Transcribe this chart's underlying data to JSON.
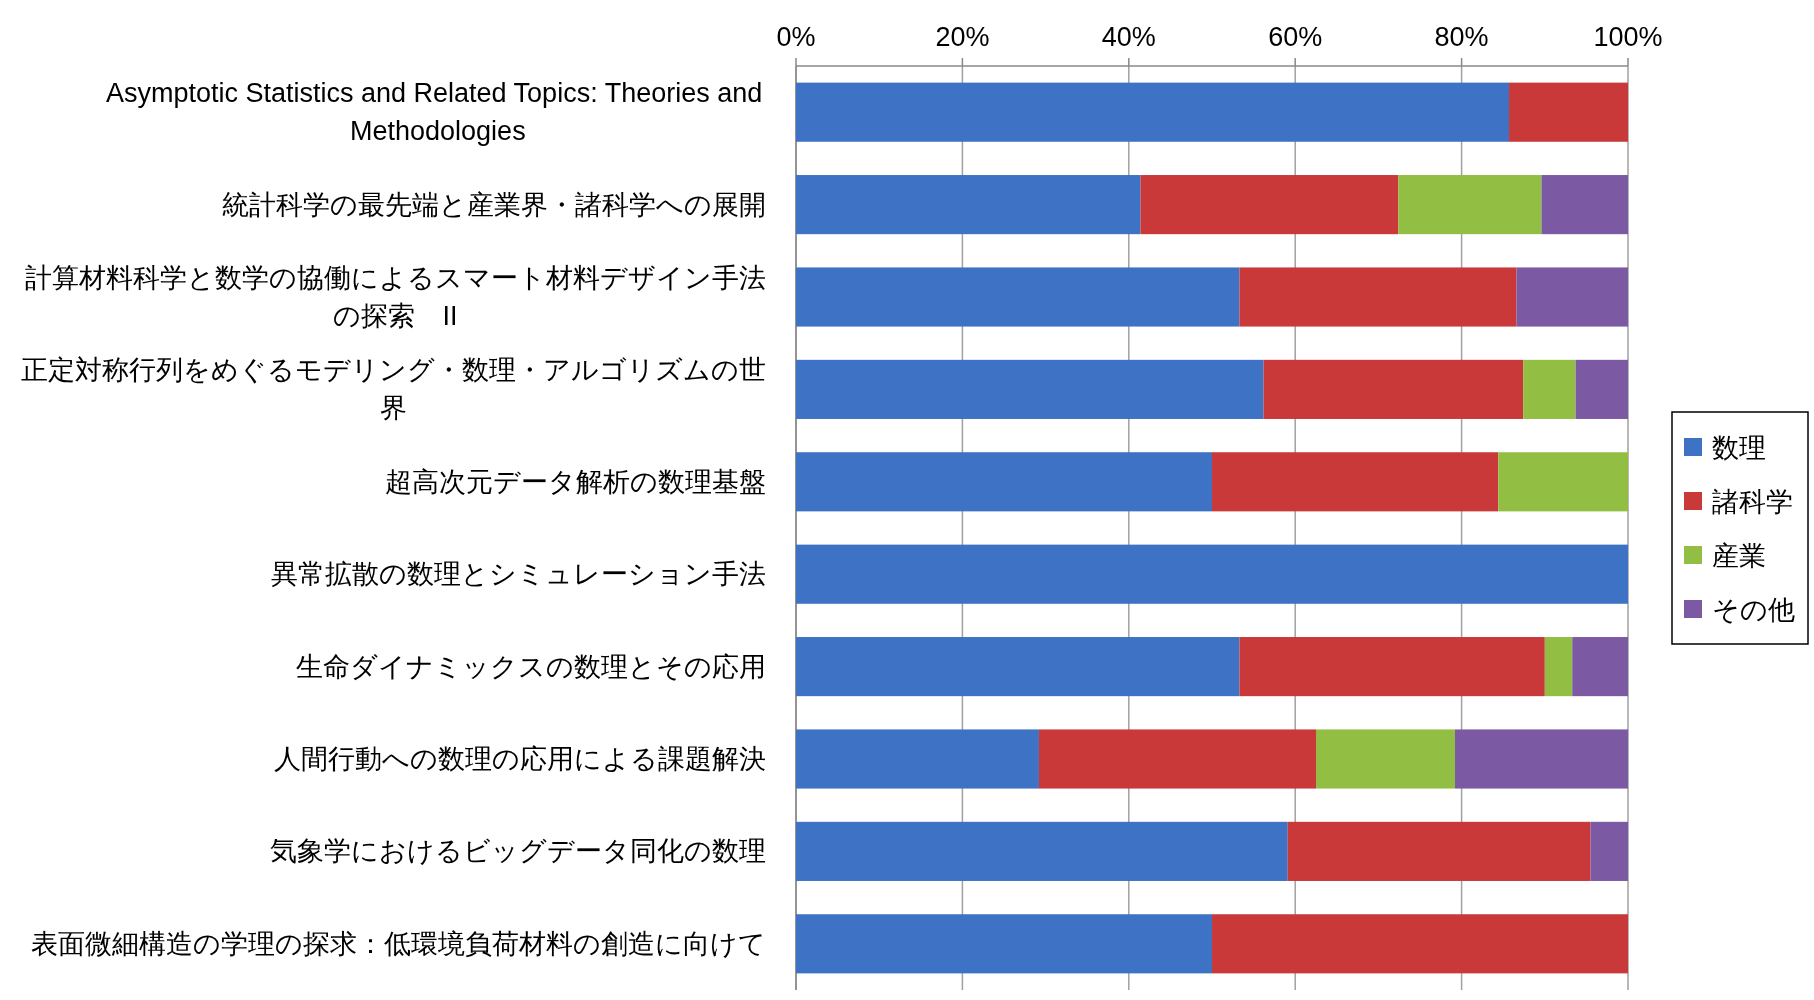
{
  "chart_data": {
    "type": "bar",
    "orientation": "horizontal",
    "stacked": true,
    "grid": "x",
    "legend": "right",
    "categories": [
      "Asymptotic Statistics and Related Topics: Theories and Methodologies",
      "統計科学の最先端と産業界・諸科学への展開",
      "計算材料科学と数学の協働によるスマート材料デザイン手法の探索　II",
      "正定対称行列をめぐるモデリング・数理・アルゴリズムの世界",
      "超高次元データ解析の数理基盤",
      "異常拡散の数理とシミュレーション手法",
      "生命ダイナミックスの数理とその応用",
      "人間行動への数理の応用による課題解決",
      "気象学におけるビッグデータ同化の数理",
      "表面微細構造の学理の探求：低環境負荷材料の創造に向けて"
    ],
    "xlim": [
      0,
      100
    ],
    "xticks": [
      {
        "value": 0,
        "label": "0%"
      },
      {
        "value": 20,
        "label": "20%"
      },
      {
        "value": 40,
        "label": "40%"
      },
      {
        "value": 60,
        "label": "60%"
      },
      {
        "value": 80,
        "label": "80%"
      },
      {
        "value": 100,
        "label": "100%"
      }
    ],
    "series": [
      {
        "name": "数理",
        "color": "#3d72c4",
        "values": [
          85.7,
          41.4,
          53.3,
          56.2,
          50.0,
          100,
          53.3,
          29.2,
          59.1,
          50.0
        ]
      },
      {
        "name": "諸科学",
        "color": "#c9393a",
        "values": [
          14.3,
          31.0,
          33.3,
          31.2,
          34.4,
          null,
          36.7,
          33.3,
          36.4,
          50.0
        ]
      },
      {
        "name": "産業",
        "color": "#92bf43",
        "values": [
          null,
          17.2,
          null,
          6.3,
          15.6,
          null,
          3.3,
          16.7,
          null,
          null
        ]
      },
      {
        "name": "その他",
        "color": "#7b59a3",
        "values": [
          null,
          10.4,
          13.4,
          6.3,
          null,
          null,
          6.7,
          20.8,
          4.5,
          null
        ]
      }
    ]
  }
}
